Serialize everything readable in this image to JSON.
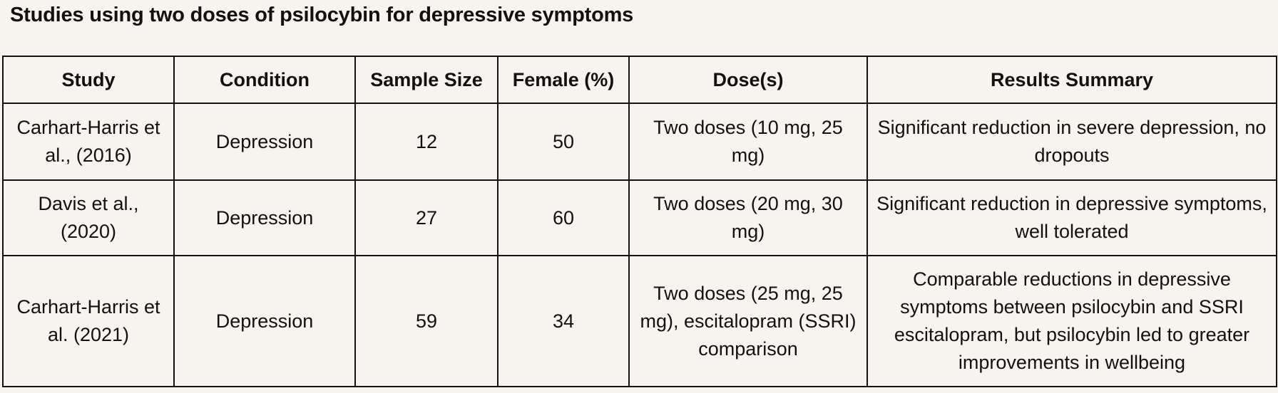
{
  "title": "Studies using two doses of psilocybin for depressive symptoms",
  "table": {
    "headers": [
      "Study",
      "Condition",
      "Sample Size",
      "Female (%)",
      "Dose(s)",
      "Results Summary"
    ],
    "rows": [
      [
        "Carhart-Harris et al., (2016)",
        "Depression",
        "12",
        "50",
        "Two doses (10 mg, 25 mg)",
        "Significant reduction in severe depression, no dropouts"
      ],
      [
        "Davis et al., (2020)",
        "Depression",
        "27",
        "60",
        "Two doses (20 mg, 30 mg)",
        "Significant reduction in depressive symptoms, well tolerated"
      ],
      [
        "Carhart-Harris et al. (2021)",
        "Depression",
        "59",
        "34",
        "Two doses (25 mg, 25 mg), escitalopram (SSRI) comparison",
        "Comparable reductions in depressive symptoms between psilocybin and SSRI escitalopram, but psilocybin led to greater improvements in wellbeing"
      ]
    ]
  }
}
